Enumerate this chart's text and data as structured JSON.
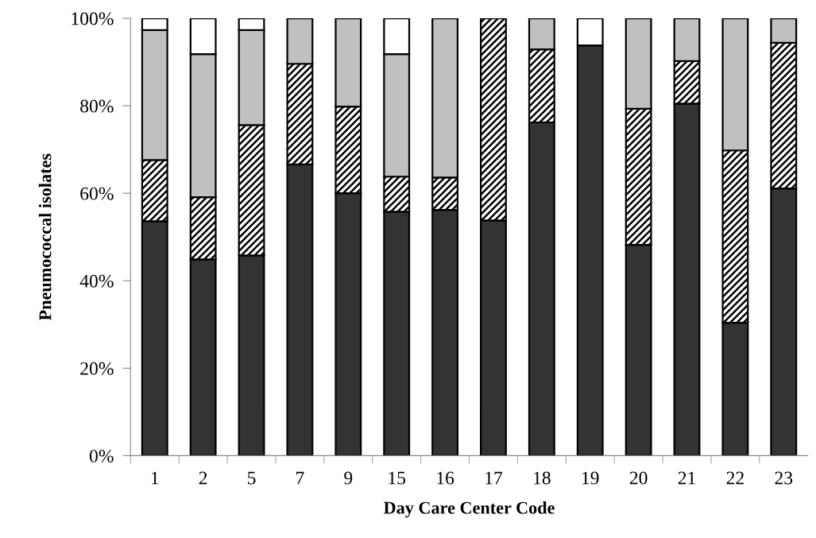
{
  "chart_data": {
    "type": "bar",
    "stacked": true,
    "xlabel": "Day Care Center Code",
    "ylabel": "Pneumococcal isolates",
    "categories": [
      "1",
      "2",
      "5",
      "7",
      "9",
      "15",
      "16",
      "17",
      "18",
      "19",
      "20",
      "21",
      "22",
      "23"
    ],
    "series": [
      {
        "color": "#333333",
        "values": [
          53.6,
          44.9,
          45.8,
          66.6,
          60.0,
          55.8,
          56.2,
          53.8,
          76.2,
          93.8,
          48.2,
          80.5,
          30.4,
          61.1
        ]
      },
      {
        "color": "#000000",
        "values": [
          14.0,
          14.2,
          29.8,
          23.0,
          19.8,
          8.0,
          7.4,
          46.2,
          16.7,
          0,
          31.1,
          9.7,
          39.4,
          33.3
        ]
      },
      {
        "color": "#c0c0c0",
        "values": [
          29.7,
          32.7,
          21.7,
          10.4,
          20.2,
          28.0,
          36.4,
          0,
          7.1,
          0,
          20.7,
          9.8,
          30.2,
          5.6
        ]
      },
      {
        "color": "#ffffff",
        "values": [
          2.7,
          8.2,
          2.7,
          0,
          0,
          8.2,
          0,
          0,
          0,
          6.2,
          0,
          0,
          0,
          0
        ]
      }
    ],
    "ylim": [
      0,
      100
    ],
    "yticks": [
      {
        "value": 0,
        "label": "0%"
      },
      {
        "value": 20,
        "label": "20%"
      },
      {
        "value": 40,
        "label": "40%"
      },
      {
        "value": 60,
        "label": "60%"
      },
      {
        "value": 80,
        "label": "80%"
      },
      {
        "value": 100,
        "label": "100%"
      }
    ],
    "grid": false,
    "legend": false
  }
}
